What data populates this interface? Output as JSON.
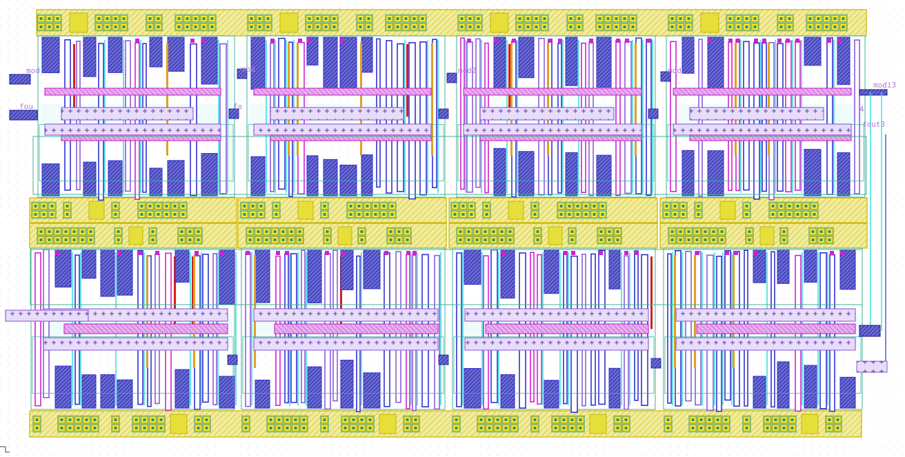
{
  "layout_view": {
    "pin_labels": [
      {
        "id": "mod0_left",
        "text": "mod"
      },
      {
        "id": "fout_left",
        "text": "fou"
      },
      {
        "id": "mod_col2",
        "text": "mod"
      },
      {
        "id": "fout_col2",
        "text": "fo"
      },
      {
        "id": "mod_col3",
        "text": "mod2"
      },
      {
        "id": "mod_col4",
        "text": "mod"
      },
      {
        "id": "modi3",
        "text": "modi3"
      },
      {
        "id": "fout3",
        "text": "fout3"
      },
      {
        "id": "net4",
        "text": "4"
      }
    ],
    "colors": {
      "background": "#ffffff",
      "grid_dot": "#c8c8c8",
      "rail_fill": "#e9e58a",
      "rail_outline": "#c9b400",
      "contact_yellow": "#f3ec3a",
      "contact_green": "#2f8f6f",
      "metal_blue": "#3030d0",
      "metal_navy": "#1a1a8a",
      "poly_magenta": "#d020d0",
      "via_cyan": "#40e0e0",
      "diff_purple": "#8a5cd8",
      "well_teal": "#3cb39a",
      "red_strip": "#d02020",
      "pin_text": "#b07adf"
    }
  }
}
